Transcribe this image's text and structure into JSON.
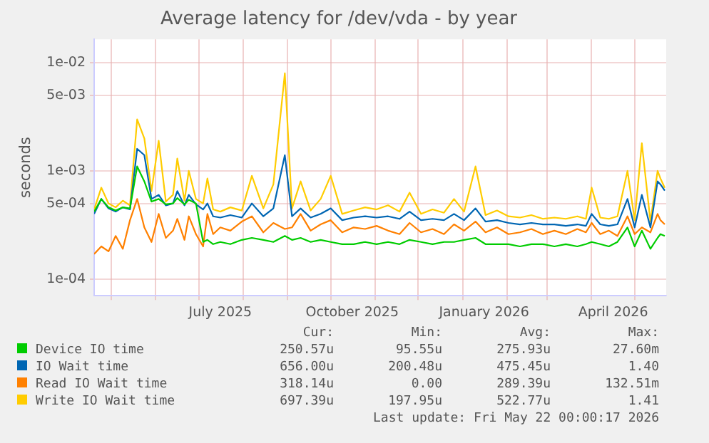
{
  "chart_data": {
    "type": "line",
    "title": "Average latency for /dev/vda - by year",
    "ylabel": "seconds",
    "log": "y",
    "grid": true,
    "legend": "bottom",
    "marker": "none",
    "line_style": "solid",
    "x": [
      "2025-04-19",
      "2025-04-24",
      "2025-04-29",
      "2025-05-04",
      "2025-05-09",
      "2025-05-14",
      "2025-05-19",
      "2025-05-24",
      "2025-05-29",
      "2025-06-03",
      "2025-06-08",
      "2025-06-13",
      "2025-06-16",
      "2025-06-21",
      "2025-06-24",
      "2025-06-29",
      "2025-07-04",
      "2025-07-07",
      "2025-07-11",
      "2025-07-16",
      "2025-07-23",
      "2025-07-31",
      "2025-08-07",
      "2025-08-15",
      "2025-08-22",
      "2025-08-30",
      "2025-09-04",
      "2025-09-10",
      "2025-09-17",
      "2025-09-24",
      "2025-10-01",
      "2025-10-09",
      "2025-10-17",
      "2025-10-25",
      "2025-11-02",
      "2025-11-10",
      "2025-11-18",
      "2025-11-25",
      "2025-12-03",
      "2025-12-11",
      "2025-12-19",
      "2025-12-26",
      "2026-01-02",
      "2026-01-10",
      "2026-01-17",
      "2026-01-25",
      "2026-02-02",
      "2026-02-10",
      "2026-02-18",
      "2026-02-26",
      "2026-03-06",
      "2026-03-14",
      "2026-03-22",
      "2026-03-28",
      "2026-04-01",
      "2026-04-07",
      "2026-04-13",
      "2026-04-19",
      "2026-04-26",
      "2026-05-01",
      "2026-05-06",
      "2026-05-12",
      "2026-05-17",
      "2026-05-19",
      "2026-05-22"
    ],
    "xlim": [
      "2025-04-19",
      "2026-05-23"
    ],
    "xticks": [
      {
        "value": "2025-05-01",
        "label": null
      },
      {
        "value": "2025-06-01",
        "label": null
      },
      {
        "value": "2025-07-01",
        "label": null
      },
      {
        "value": "2025-07-16",
        "label": "July 2025"
      },
      {
        "value": "2025-08-01",
        "label": null
      },
      {
        "value": "2025-09-01",
        "label": null
      },
      {
        "value": "2025-10-01",
        "label": null
      },
      {
        "value": "2025-10-16",
        "label": "October 2025"
      },
      {
        "value": "2025-11-01",
        "label": null
      },
      {
        "value": "2025-12-01",
        "label": null
      },
      {
        "value": "2026-01-01",
        "label": null
      },
      {
        "value": "2026-01-16",
        "label": "January 2026"
      },
      {
        "value": "2026-02-01",
        "label": null
      },
      {
        "value": "2026-03-01",
        "label": null
      },
      {
        "value": "2026-04-01",
        "label": null
      },
      {
        "value": "2026-04-16",
        "label": "April 2026"
      },
      {
        "value": "2026-05-01",
        "label": null
      }
    ],
    "ylim": [
      7e-05,
      0.0165
    ],
    "yticks": [
      {
        "value": 0.0001,
        "label": "1e-04"
      },
      {
        "value": 0.0005,
        "label": "5e-04"
      },
      {
        "value": 0.001,
        "label": "1e-03"
      },
      {
        "value": 0.005,
        "label": "5e-03"
      },
      {
        "value": 0.01,
        "label": "1e-02"
      }
    ],
    "series": [
      {
        "name": "Device IO time",
        "color": "#00cc00",
        "values": [
          0.00042,
          0.00055,
          0.00046,
          0.00043,
          0.00046,
          0.00045,
          0.0011,
          0.0008,
          0.00052,
          0.00055,
          0.00049,
          0.0005,
          0.00056,
          0.00049,
          0.00054,
          0.0005,
          0.00022,
          0.00023,
          0.00021,
          0.00022,
          0.00021,
          0.00023,
          0.00024,
          0.00023,
          0.00022,
          0.00025,
          0.00023,
          0.00024,
          0.00022,
          0.00023,
          0.00022,
          0.00021,
          0.00021,
          0.00022,
          0.00021,
          0.00022,
          0.00021,
          0.00023,
          0.00022,
          0.00021,
          0.00022,
          0.00022,
          0.00023,
          0.00024,
          0.00021,
          0.00021,
          0.00021,
          0.0002,
          0.00021,
          0.00021,
          0.0002,
          0.00021,
          0.0002,
          0.00021,
          0.00022,
          0.00021,
          0.0002,
          0.00022,
          0.0003,
          0.0002,
          0.00028,
          0.00019,
          0.00024,
          0.00026,
          0.00025
        ]
      },
      {
        "name": "IO Wait time",
        "color": "#0066b3",
        "values": [
          0.0004,
          0.00055,
          0.00045,
          0.00042,
          0.00046,
          0.00044,
          0.0016,
          0.0014,
          0.00055,
          0.0006,
          0.00048,
          0.0005,
          0.00065,
          0.00048,
          0.0006,
          0.00049,
          0.00044,
          0.0005,
          0.00038,
          0.00037,
          0.00039,
          0.00037,
          0.0005,
          0.00038,
          0.00045,
          0.0014,
          0.00038,
          0.00045,
          0.00037,
          0.0004,
          0.00045,
          0.00035,
          0.00037,
          0.00038,
          0.00037,
          0.00038,
          0.00036,
          0.00042,
          0.00035,
          0.00036,
          0.00035,
          0.0004,
          0.00035,
          0.00045,
          0.00034,
          0.00035,
          0.00033,
          0.00032,
          0.00033,
          0.00032,
          0.00032,
          0.00031,
          0.00032,
          0.00031,
          0.0004,
          0.00032,
          0.00031,
          0.00032,
          0.00055,
          0.0003,
          0.0006,
          0.0003,
          0.0008,
          0.00075,
          0.000656
        ]
      },
      {
        "name": "Read IO Wait time",
        "color": "#ff8000",
        "values": [
          0.00017,
          0.0002,
          0.00018,
          0.00025,
          0.00019,
          0.00035,
          0.00055,
          0.0003,
          0.00022,
          0.0004,
          0.00024,
          0.00028,
          0.00036,
          0.00023,
          0.00038,
          0.00026,
          0.0002,
          0.0004,
          0.00026,
          0.0003,
          0.00028,
          0.00034,
          0.00038,
          0.00027,
          0.00033,
          0.00029,
          0.0003,
          0.0004,
          0.00028,
          0.00032,
          0.00035,
          0.00027,
          0.0003,
          0.00029,
          0.00031,
          0.00028,
          0.00026,
          0.00033,
          0.00027,
          0.00029,
          0.00026,
          0.00032,
          0.00028,
          0.00034,
          0.00027,
          0.0003,
          0.00026,
          0.00027,
          0.00029,
          0.00026,
          0.00028,
          0.00026,
          0.00029,
          0.00027,
          0.00033,
          0.00026,
          0.00028,
          0.00025,
          0.00038,
          0.00026,
          0.0003,
          0.00027,
          0.0004,
          0.00035,
          0.00032
        ]
      },
      {
        "name": "Write IO Wait time",
        "color": "#ffcc00",
        "values": [
          0.00044,
          0.0007,
          0.0005,
          0.00046,
          0.00053,
          0.00048,
          0.003,
          0.002,
          0.00065,
          0.0019,
          0.00052,
          0.0006,
          0.0013,
          0.00053,
          0.001,
          0.00055,
          0.0005,
          0.00085,
          0.00044,
          0.00042,
          0.00046,
          0.00043,
          0.0009,
          0.00045,
          0.00075,
          0.008,
          0.00045,
          0.0008,
          0.00043,
          0.00055,
          0.0009,
          0.0004,
          0.00043,
          0.00046,
          0.00044,
          0.00048,
          0.00042,
          0.00063,
          0.0004,
          0.00044,
          0.00041,
          0.00055,
          0.00042,
          0.0011,
          0.00039,
          0.00043,
          0.00038,
          0.00037,
          0.00039,
          0.00036,
          0.00037,
          0.00036,
          0.00038,
          0.00036,
          0.0007,
          0.00037,
          0.00036,
          0.00038,
          0.001,
          0.00035,
          0.0018,
          0.00034,
          0.001,
          0.00085,
          0.000697
        ]
      }
    ],
    "annotations": [
      "Cur:",
      "Min:",
      "Avg:",
      "Max:",
      "250.57u",
      "95.55u",
      "275.93u",
      "27.60m",
      "656.00u",
      "200.48u",
      "475.45u",
      "1.40",
      "318.14u",
      "0.00",
      "289.39u",
      "132.51m",
      "697.39u",
      "197.95u",
      "522.77u",
      "1.41",
      "Last update: Fri May 22 00:00:17 2026"
    ]
  }
}
